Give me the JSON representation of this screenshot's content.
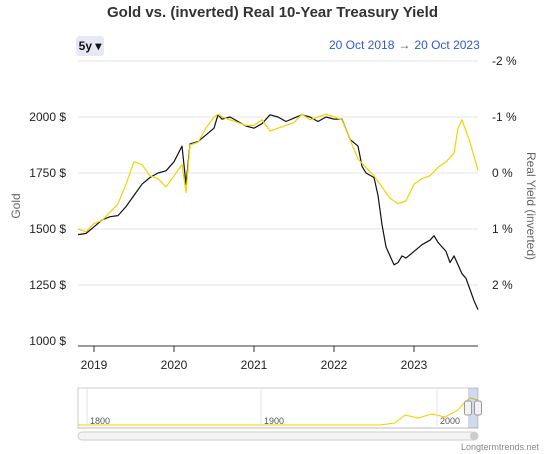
{
  "title": "Gold vs. (inverted) Real 10-Year Treasury Yield",
  "range_button": "5y ▾",
  "date_range": {
    "from": "20 Oct 2018",
    "arrow": "→",
    "to": "20 Oct 2023"
  },
  "attribution": "Longtermtrends.net",
  "colors": {
    "gold": "#111111",
    "real_yield": "#f2d200",
    "accent": "#3358d4"
  },
  "chart_data": {
    "type": "line",
    "title": "Gold vs. (inverted) Real 10-Year Treasury Yield",
    "ylabel_left": "Gold",
    "ylabel_right": "Real Yield (inverted)",
    "x_ticks": [
      "2019",
      "2020",
      "2021",
      "2022",
      "2023"
    ],
    "y_left_ticks": [
      "1000 $",
      "1250 $",
      "1500 $",
      "1750 $",
      "2000 $"
    ],
    "y_left_range": [
      1000,
      2000
    ],
    "y_right_ticks": [
      "-2 %",
      "-1 %",
      "0 %",
      "1 %",
      "2 %"
    ],
    "y_right_range": [
      2,
      -2
    ],
    "grid": true,
    "series": [
      {
        "name": "Gold",
        "axis": "left",
        "points": [
          [
            2018.8,
            1475
          ],
          [
            2018.9,
            1480
          ],
          [
            2019.0,
            1510
          ],
          [
            2019.1,
            1540
          ],
          [
            2019.2,
            1555
          ],
          [
            2019.3,
            1560
          ],
          [
            2019.4,
            1600
          ],
          [
            2019.5,
            1650
          ],
          [
            2019.6,
            1700
          ],
          [
            2019.7,
            1730
          ],
          [
            2019.8,
            1750
          ],
          [
            2019.9,
            1760
          ],
          [
            2020.0,
            1800
          ],
          [
            2020.1,
            1870
          ],
          [
            2020.15,
            1700
          ],
          [
            2020.2,
            1880
          ],
          [
            2020.3,
            1890
          ],
          [
            2020.4,
            1920
          ],
          [
            2020.5,
            1950
          ],
          [
            2020.55,
            2010
          ],
          [
            2020.6,
            1990
          ],
          [
            2020.7,
            2000
          ],
          [
            2020.8,
            1980
          ],
          [
            2020.9,
            1960
          ],
          [
            2021.0,
            1950
          ],
          [
            2021.1,
            1970
          ],
          [
            2021.2,
            2010
          ],
          [
            2021.3,
            2000
          ],
          [
            2021.4,
            1980
          ],
          [
            2021.5,
            1995
          ],
          [
            2021.6,
            2010
          ],
          [
            2021.7,
            2000
          ],
          [
            2021.8,
            1980
          ],
          [
            2021.9,
            2000
          ],
          [
            2022.0,
            1990
          ],
          [
            2022.1,
            1990
          ],
          [
            2022.2,
            1900
          ],
          [
            2022.3,
            1870
          ],
          [
            2022.35,
            1780
          ],
          [
            2022.4,
            1750
          ],
          [
            2022.5,
            1730
          ],
          [
            2022.55,
            1650
          ],
          [
            2022.6,
            1520
          ],
          [
            2022.65,
            1420
          ],
          [
            2022.7,
            1380
          ],
          [
            2022.75,
            1340
          ],
          [
            2022.8,
            1350
          ],
          [
            2022.85,
            1380
          ],
          [
            2022.9,
            1370
          ],
          [
            2023.0,
            1400
          ],
          [
            2023.1,
            1430
          ],
          [
            2023.2,
            1450
          ],
          [
            2023.25,
            1470
          ],
          [
            2023.3,
            1440
          ],
          [
            2023.4,
            1400
          ],
          [
            2023.45,
            1350
          ],
          [
            2023.5,
            1380
          ],
          [
            2023.55,
            1340
          ],
          [
            2023.6,
            1300
          ],
          [
            2023.65,
            1280
          ],
          [
            2023.7,
            1230
          ],
          [
            2023.75,
            1180
          ],
          [
            2023.8,
            1140
          ]
        ]
      },
      {
        "name": "Real Yield (inverted)",
        "axis": "right",
        "points": [
          [
            2018.8,
            1.0
          ],
          [
            2018.9,
            1.05
          ],
          [
            2019.0,
            0.9
          ],
          [
            2019.1,
            0.85
          ],
          [
            2019.2,
            0.7
          ],
          [
            2019.3,
            0.55
          ],
          [
            2019.4,
            0.2
          ],
          [
            2019.5,
            -0.2
          ],
          [
            2019.6,
            -0.15
          ],
          [
            2019.7,
            0.05
          ],
          [
            2019.8,
            0.1
          ],
          [
            2019.9,
            0.25
          ],
          [
            2020.0,
            0.05
          ],
          [
            2020.1,
            -0.15
          ],
          [
            2020.15,
            0.35
          ],
          [
            2020.2,
            -0.5
          ],
          [
            2020.3,
            -0.55
          ],
          [
            2020.4,
            -0.8
          ],
          [
            2020.5,
            -1.0
          ],
          [
            2020.55,
            -1.05
          ],
          [
            2020.6,
            -1.0
          ],
          [
            2020.7,
            -0.95
          ],
          [
            2020.8,
            -0.9
          ],
          [
            2020.9,
            -0.85
          ],
          [
            2021.0,
            -0.85
          ],
          [
            2021.1,
            -0.95
          ],
          [
            2021.2,
            -0.75
          ],
          [
            2021.3,
            -0.8
          ],
          [
            2021.4,
            -0.85
          ],
          [
            2021.5,
            -0.9
          ],
          [
            2021.6,
            -1.05
          ],
          [
            2021.7,
            -0.95
          ],
          [
            2021.8,
            -1.0
          ],
          [
            2021.9,
            -1.05
          ],
          [
            2022.0,
            -1.0
          ],
          [
            2022.1,
            -0.95
          ],
          [
            2022.2,
            -0.6
          ],
          [
            2022.3,
            -0.25
          ],
          [
            2022.4,
            -0.1
          ],
          [
            2022.5,
            0.05
          ],
          [
            2022.6,
            0.25
          ],
          [
            2022.7,
            0.45
          ],
          [
            2022.8,
            0.55
          ],
          [
            2022.9,
            0.5
          ],
          [
            2023.0,
            0.2
          ],
          [
            2023.1,
            0.1
          ],
          [
            2023.2,
            0.05
          ],
          [
            2023.3,
            -0.1
          ],
          [
            2023.4,
            -0.2
          ],
          [
            2023.5,
            -0.35
          ],
          [
            2023.55,
            -0.8
          ],
          [
            2023.6,
            -0.95
          ],
          [
            2023.65,
            -0.75
          ],
          [
            2023.7,
            -0.55
          ],
          [
            2023.75,
            -0.3
          ],
          [
            2023.8,
            -0.05
          ]
        ]
      }
    ],
    "navigator": {
      "ticks": [
        "1800",
        "1900",
        "2000"
      ]
    }
  }
}
